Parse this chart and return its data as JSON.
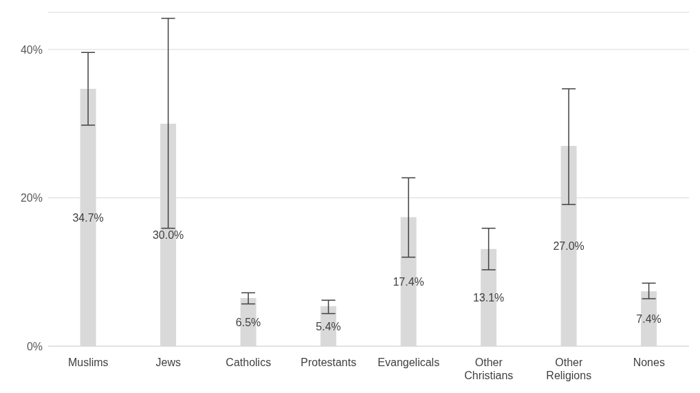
{
  "chart_data": {
    "type": "bar",
    "categories": [
      "Muslims",
      "Jews",
      "Catholics",
      "Protestants",
      "Evangelicals",
      "Other Christians",
      "Other Religions",
      "Nones"
    ],
    "values": [
      34.7,
      30.0,
      6.5,
      5.4,
      17.4,
      13.1,
      27.0,
      7.4
    ],
    "value_labels": [
      "34.7%",
      "30.0%",
      "6.5%",
      "5.4%",
      "17.4%",
      "13.1%",
      "27.0%",
      "7.4%"
    ],
    "errors": [
      [
        29.8,
        39.6
      ],
      [
        15.9,
        44.2
      ],
      [
        5.7,
        7.2
      ],
      [
        4.4,
        6.2
      ],
      [
        12.0,
        22.7
      ],
      [
        10.3,
        15.9
      ],
      [
        19.1,
        34.7
      ],
      [
        6.4,
        8.5
      ]
    ],
    "color": "#d9d9d9",
    "ylim": [
      0,
      45
    ],
    "yticks": [
      {
        "value": 0,
        "label": "0%"
      },
      {
        "value": 20,
        "label": "20%"
      },
      {
        "value": 40,
        "label": "40%"
      }
    ],
    "grid": "y",
    "legend": false
  }
}
